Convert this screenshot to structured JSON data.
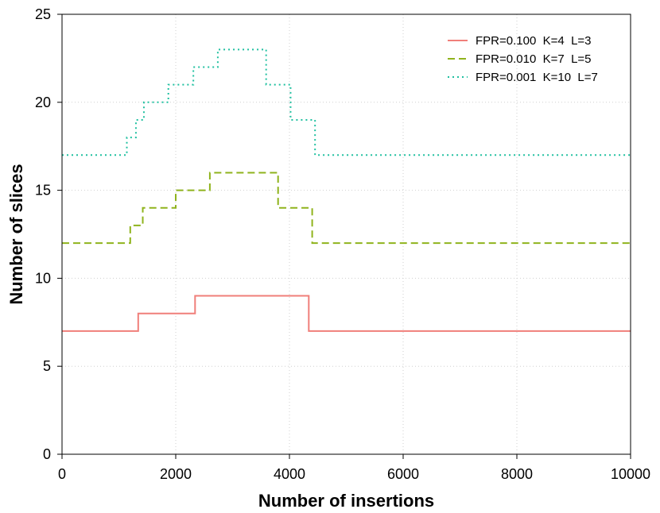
{
  "chart_data": {
    "type": "line",
    "step": true,
    "xlabel": "Number of insertions",
    "ylabel": "Number of slices",
    "xlim": [
      0,
      10000
    ],
    "ylim": [
      0,
      25
    ],
    "xticks": [
      0,
      2000,
      4000,
      6000,
      8000,
      10000
    ],
    "yticks": [
      0,
      5,
      10,
      15,
      20,
      25
    ],
    "grid": true,
    "legend_position": "top-right",
    "series": [
      {
        "name": "FPR=0.100  K=4  L=3",
        "color": "#f07f7a",
        "dash": "solid",
        "x": [
          0,
          1340,
          1340,
          2340,
          2340,
          4340,
          4340,
          10000
        ],
        "y": [
          7,
          7,
          8,
          8,
          9,
          9,
          7,
          7
        ]
      },
      {
        "name": "FPR=0.010  K=7  L=5",
        "color": "#8fb31c",
        "dash": "dashed",
        "x": [
          0,
          1200,
          1200,
          1420,
          1420,
          2000,
          2000,
          2600,
          2600,
          3800,
          3800,
          4400,
          4400,
          10000
        ],
        "y": [
          12,
          12,
          13,
          13,
          14,
          14,
          15,
          15,
          16,
          16,
          14,
          14,
          12,
          12
        ]
      },
      {
        "name": "FPR=0.001  K=10  L=7",
        "color": "#20c0a0",
        "dash": "dotted",
        "x": [
          0,
          1140,
          1140,
          1300,
          1300,
          1440,
          1440,
          1870,
          1870,
          2310,
          2310,
          2740,
          2740,
          3590,
          3590,
          4020,
          4020,
          4450,
          4450,
          10000
        ],
        "y": [
          17,
          17,
          18,
          18,
          19,
          19,
          20,
          20,
          21,
          21,
          22,
          22,
          23,
          23,
          21,
          21,
          19,
          19,
          17,
          17
        ]
      }
    ]
  }
}
